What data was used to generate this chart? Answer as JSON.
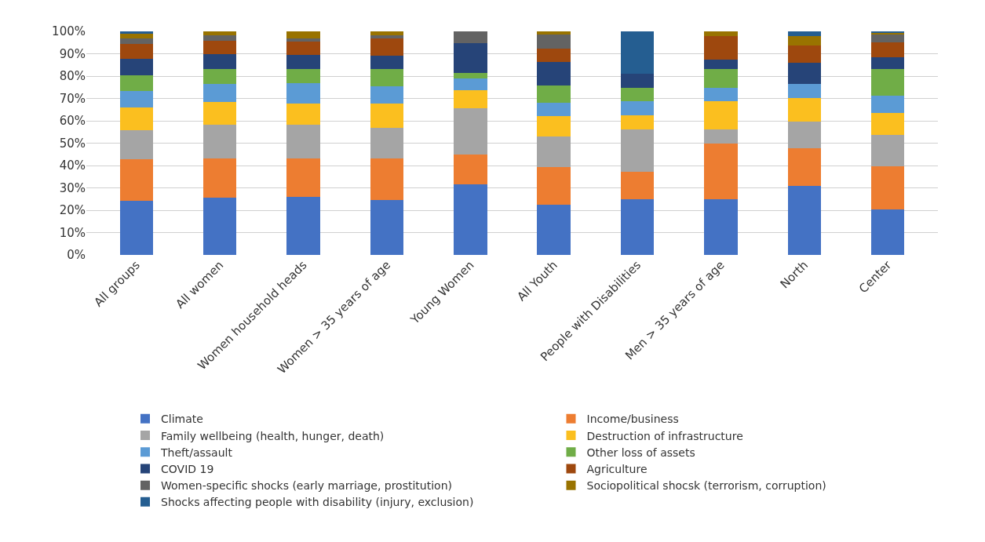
{
  "chart_data": {
    "type": "bar",
    "stacked": true,
    "categories": [
      "All groups",
      "All women",
      "Women household heads",
      "Women > 35 years of age",
      "Young Women",
      "All Youth",
      "People with Disabilities",
      "Men > 35 years of age",
      "North",
      "Center"
    ],
    "ylim": [
      0,
      100
    ],
    "yticks": [
      {
        "value": 0,
        "label": "0%"
      },
      {
        "value": 10,
        "label": "10%"
      },
      {
        "value": 20,
        "label": "20%"
      },
      {
        "value": 30,
        "label": "30%"
      },
      {
        "value": 40,
        "label": "40%"
      },
      {
        "value": 50,
        "label": "50%"
      },
      {
        "value": 60,
        "label": "60%"
      },
      {
        "value": 70,
        "label": "70%"
      },
      {
        "value": 80,
        "label": "80%"
      },
      {
        "value": 90,
        "label": "90%"
      },
      {
        "value": 100,
        "label": "100%"
      }
    ],
    "grid": "y",
    "legend": "bottom",
    "series": [
      {
        "name": "Climate",
        "color": "#4472c4",
        "values": [
          24.1,
          25.7,
          26.0,
          24.5,
          31.5,
          22.6,
          24.9,
          24.9,
          30.8,
          20.4
        ]
      },
      {
        "name": "Income/business",
        "color": "#ed7d31",
        "values": [
          18.6,
          17.6,
          17.1,
          18.6,
          13.3,
          16.7,
          12.4,
          25.0,
          17.0,
          19.4
        ]
      },
      {
        "name": "Family wellbeing (health, hunger, death)",
        "color": "#a5a5a5",
        "values": [
          13.1,
          15.1,
          15.3,
          13.7,
          20.9,
          13.6,
          18.9,
          6.3,
          11.7,
          14.0
        ]
      },
      {
        "name": "Destruction of infrastructure",
        "color": "#fbbf1f",
        "values": [
          10.1,
          10.1,
          9.2,
          10.8,
          7.9,
          9.3,
          6.2,
          12.5,
          10.7,
          9.7
        ]
      },
      {
        "name": "Theft/assault",
        "color": "#5b9bd5",
        "values": [
          7.3,
          8.1,
          9.3,
          7.7,
          5.3,
          5.9,
          6.3,
          6.1,
          6.3,
          7.9
        ]
      },
      {
        "name": "Other loss of assets",
        "color": "#70ad47",
        "values": [
          7.3,
          6.4,
          6.2,
          7.8,
          2.6,
          7.6,
          6.2,
          8.5,
          0,
          11.6
        ]
      },
      {
        "name": "COVID 19",
        "color": "#264478",
        "values": [
          7.1,
          6.9,
          6.2,
          6.1,
          13.1,
          10.7,
          6.2,
          4.2,
          9.6,
          5.3
        ]
      },
      {
        "name": "Agriculture",
        "color": "#9e480e",
        "values": [
          6.9,
          5.8,
          6.1,
          7.8,
          0,
          6.0,
          0,
          10.4,
          7.6,
          6.8
        ]
      },
      {
        "name": "Women-specific shocks (early marriage, prostitution)",
        "color": "#636363",
        "values": [
          2.2,
          2.4,
          1.4,
          1.3,
          5.4,
          6.1,
          0,
          0,
          0,
          3.7
        ]
      },
      {
        "name": "Sociopolitical shocsk (terrorism, corruption)",
        "color": "#997300",
        "values": [
          2.1,
          1.9,
          3.2,
          1.7,
          0,
          1.5,
          0,
          2.1,
          4.1,
          0.4
        ]
      },
      {
        "name": "Shocks affecting people with disability (injury, exclusion)",
        "color": "#255e91",
        "values": [
          1.2,
          0,
          0,
          0,
          0,
          0,
          18.9,
          0,
          2.2,
          0.8
        ]
      }
    ]
  }
}
